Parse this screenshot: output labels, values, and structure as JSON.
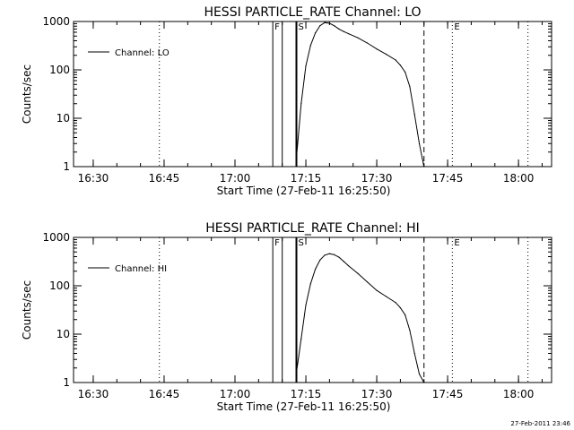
{
  "chart_data": [
    {
      "type": "line",
      "title": "HESSI PARTICLE_RATE Channel: LO",
      "xlabel": "Start Time (27-Feb-11 16:25:50)",
      "ylabel": "Counts/sec",
      "yscale": "log",
      "ylim": [
        1,
        1000
      ],
      "xlim": [
        "16:25:50",
        "18:07:00"
      ],
      "xticks": [
        "16:30",
        "16:45",
        "17:00",
        "17:15",
        "17:30",
        "17:45",
        "18:00"
      ],
      "yticks": [
        "1",
        "10",
        "100",
        "1000"
      ],
      "grid": false,
      "legend": {
        "position": "top-left",
        "label": "Channel: LO"
      },
      "series": [
        {
          "name": "Channel: LO",
          "x": [
            "17:13:00",
            "17:14:00",
            "17:15:00",
            "17:16:00",
            "17:17:00",
            "17:18:00",
            "17:19:00",
            "17:20:00",
            "17:21:00",
            "17:22:00",
            "17:23:00",
            "17:24:00",
            "17:26:00",
            "17:28:00",
            "17:30:00",
            "17:32:00",
            "17:34:00",
            "17:35:00",
            "17:36:00",
            "17:37:00",
            "17:38:00",
            "17:39:00",
            "17:40:00"
          ],
          "y": [
            1.5,
            20,
            120,
            320,
            580,
            820,
            950,
            920,
            820,
            700,
            620,
            560,
            460,
            360,
            270,
            210,
            160,
            125,
            90,
            45,
            12,
            3,
            1
          ]
        }
      ],
      "markers": [
        {
          "label": "F",
          "time": "17:08:00",
          "style": "solid"
        },
        {
          "label": "",
          "time": "17:10:00",
          "style": "solid"
        },
        {
          "label": "S",
          "time": "17:13:00",
          "style": "solid-thick"
        },
        {
          "label": "",
          "time": "17:40:00",
          "style": "dashed"
        },
        {
          "label": "E",
          "time": "17:46:00",
          "style": "dotted"
        },
        {
          "label": "",
          "time": "16:44:00",
          "style": "dotted"
        },
        {
          "label": "",
          "time": "18:02:00",
          "style": "dotted"
        }
      ]
    },
    {
      "type": "line",
      "title": "HESSI PARTICLE_RATE Channel: HI",
      "xlabel": "Start Time (27-Feb-11 16:25:50)",
      "ylabel": "Counts/sec",
      "yscale": "log",
      "ylim": [
        1,
        1000
      ],
      "xlim": [
        "16:25:50",
        "18:07:00"
      ],
      "xticks": [
        "16:30",
        "16:45",
        "17:00",
        "17:15",
        "17:30",
        "17:45",
        "18:00"
      ],
      "yticks": [
        "1",
        "10",
        "100",
        "1000"
      ],
      "grid": false,
      "legend": {
        "position": "top-left",
        "label": "Channel: HI"
      },
      "series": [
        {
          "name": "Channel: HI",
          "x": [
            "17:13:00",
            "17:14:00",
            "17:15:00",
            "17:16:00",
            "17:17:00",
            "17:18:00",
            "17:19:00",
            "17:20:00",
            "17:21:00",
            "17:22:00",
            "17:23:00",
            "17:24:00",
            "17:26:00",
            "17:28:00",
            "17:30:00",
            "17:32:00",
            "17:34:00",
            "17:35:00",
            "17:36:00",
            "17:37:00",
            "17:38:00",
            "17:39:00",
            "17:40:00"
          ],
          "y": [
            1.6,
            8,
            40,
            110,
            220,
            340,
            430,
            460,
            440,
            390,
            320,
            260,
            180,
            120,
            80,
            60,
            45,
            35,
            25,
            12,
            4,
            1.5,
            1
          ]
        }
      ],
      "markers": [
        {
          "label": "F",
          "time": "17:08:00",
          "style": "solid"
        },
        {
          "label": "",
          "time": "17:10:00",
          "style": "solid"
        },
        {
          "label": "S",
          "time": "17:13:00",
          "style": "solid-thick"
        },
        {
          "label": "",
          "time": "17:40:00",
          "style": "dashed"
        },
        {
          "label": "E",
          "time": "17:46:00",
          "style": "dotted"
        },
        {
          "label": "",
          "time": "16:44:00",
          "style": "dotted"
        },
        {
          "label": "",
          "time": "18:02:00",
          "style": "dotted"
        }
      ]
    }
  ],
  "timestamp": "27-Feb-2011 23:46"
}
